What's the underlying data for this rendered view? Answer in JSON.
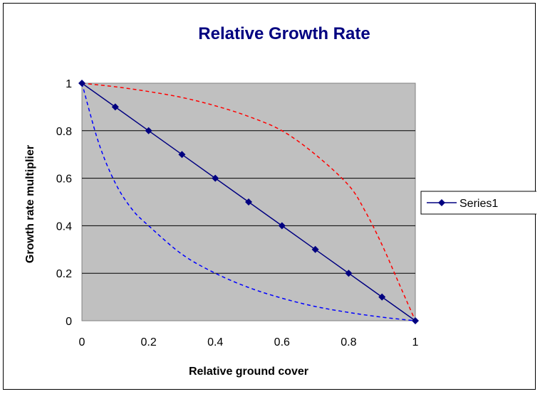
{
  "chart_data": {
    "type": "line",
    "title": "Relative Growth Rate",
    "xlabel": "Relative ground cover",
    "ylabel": "Growth rate multiplier",
    "xlim": [
      0,
      1
    ],
    "ylim": [
      0,
      1
    ],
    "x_ticks": [
      "0",
      "0.2",
      "0.4",
      "0.6",
      "0.8",
      "1"
    ],
    "y_ticks": [
      "0",
      "0.2",
      "0.4",
      "0.6",
      "0.8",
      "1"
    ],
    "grid": "horizontal",
    "legend_position": "right",
    "series": [
      {
        "name": "Series1",
        "style": "solid-with-diamond-markers",
        "color": "#000080",
        "x": [
          0,
          0.1,
          0.2,
          0.3,
          0.4,
          0.5,
          0.6,
          0.7,
          0.8,
          0.9,
          1
        ],
        "y": [
          1,
          0.9,
          0.8,
          0.7,
          0.6,
          0.5,
          0.4,
          0.3,
          0.2,
          0.1,
          0
        ]
      },
      {
        "style": "dashed",
        "color": "#ff0000",
        "x": [
          0,
          0.1,
          0.2,
          0.3,
          0.4,
          0.5,
          0.6,
          0.7,
          0.8,
          0.85,
          0.9,
          0.95,
          1
        ],
        "y": [
          1,
          0.985,
          0.965,
          0.94,
          0.905,
          0.86,
          0.8,
          0.7,
          0.57,
          0.46,
          0.32,
          0.16,
          0
        ]
      },
      {
        "style": "dashed",
        "color": "#0000ff",
        "x": [
          0,
          0.05,
          0.1,
          0.15,
          0.2,
          0.3,
          0.4,
          0.5,
          0.6,
          0.7,
          0.8,
          0.9,
          1
        ],
        "y": [
          1,
          0.75,
          0.58,
          0.47,
          0.4,
          0.28,
          0.2,
          0.14,
          0.095,
          0.06,
          0.035,
          0.015,
          0
        ]
      }
    ]
  },
  "colors": {
    "plot_background": "#c0c0c0",
    "title": "#000080",
    "gridline": "#000000"
  }
}
